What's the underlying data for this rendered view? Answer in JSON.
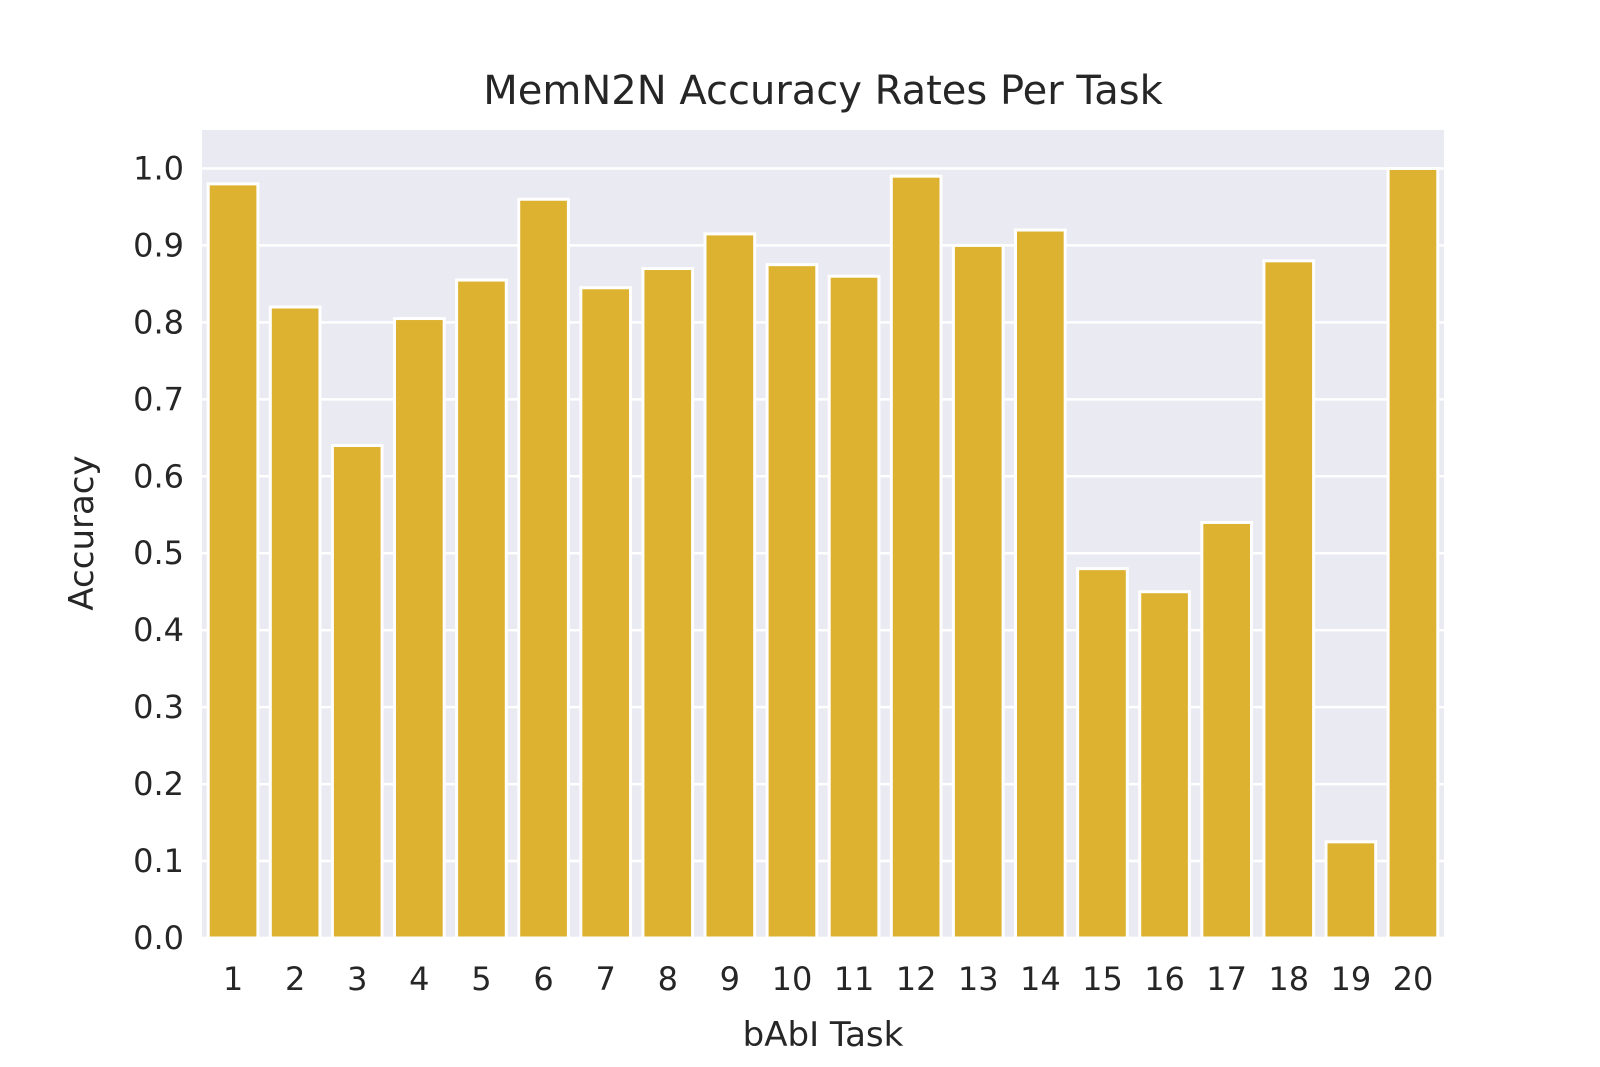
{
  "chart_data": {
    "type": "bar",
    "title": "MemN2N Accuracy Rates Per Task",
    "xlabel": "bAbI Task",
    "ylabel": "Accuracy",
    "categories": [
      "1",
      "2",
      "3",
      "4",
      "5",
      "6",
      "7",
      "8",
      "9",
      "10",
      "11",
      "12",
      "13",
      "14",
      "15",
      "16",
      "17",
      "18",
      "19",
      "20"
    ],
    "values": [
      0.98,
      0.82,
      0.64,
      0.805,
      0.855,
      0.96,
      0.845,
      0.87,
      0.915,
      0.875,
      0.86,
      0.99,
      0.9,
      0.92,
      0.48,
      0.45,
      0.54,
      0.88,
      0.125,
      1.0
    ],
    "ylim": [
      0,
      1.05
    ],
    "yticks": [
      "0.0",
      "0.1",
      "0.2",
      "0.3",
      "0.4",
      "0.5",
      "0.6",
      "0.7",
      "0.8",
      "0.9",
      "1.0"
    ],
    "grid": true,
    "legend": "none",
    "colors": {
      "bar": "#DDB231",
      "bar_edge": "#ffffff",
      "plot_background": "#EAEAF2",
      "grid": "#ffffff"
    }
  }
}
